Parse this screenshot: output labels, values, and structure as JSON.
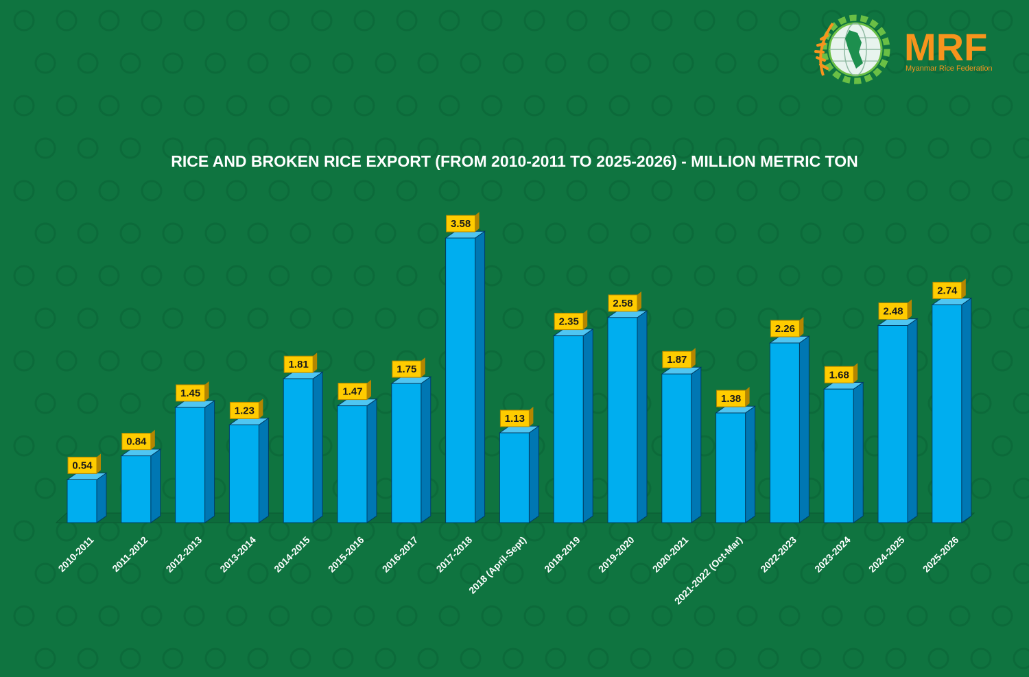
{
  "colors": {
    "background": "#0f7440",
    "pattern": "#0c6a3a",
    "bar_front": "#00aeef",
    "bar_side": "#0077b3",
    "bar_top": "#4fc6f2",
    "bar_edge": "#003d63",
    "label_fill": "#ffcc00",
    "label_edge": "#b58600",
    "floor": "#0d6b3b",
    "logo_orange": "#f7941d",
    "logo_green": "#6abf45"
  },
  "logo": {
    "acronym": "MRF",
    "name": "Myanmar Rice Federation",
    "icon": "globe-gear-rice-icon"
  },
  "chart_data": {
    "type": "bar",
    "title": "RICE AND BROKEN RICE EXPORT (FROM 2010-2011 TO 2025-2026) - MILLION METRIC TON",
    "xlabel": "",
    "ylabel": "",
    "ylim": [
      0,
      3.58
    ],
    "grid": false,
    "legend": "none",
    "categories": [
      "2010-2011",
      "2011-2012",
      "2012-2013",
      "2013-2014",
      "2014-2015",
      "2015-2016",
      "2016-2017",
      "2017-2018",
      "2018 (April-Sept)",
      "2018-2019",
      "2019-2020",
      "2020-2021",
      "2021-2022 (Oct-Mar)",
      "2022-2023",
      "2023-2024",
      "2024-2025",
      "2025-2026"
    ],
    "values": [
      0.54,
      0.84,
      1.45,
      1.23,
      1.81,
      1.47,
      1.75,
      3.58,
      1.13,
      2.35,
      2.58,
      1.87,
      1.38,
      2.26,
      1.68,
      2.48,
      2.74
    ],
    "value_labels": [
      "0.54",
      "0.84",
      "1.45",
      "1.23",
      "1.81",
      "1.47",
      "1.75",
      "3.58",
      "1.13",
      "2.35",
      "2.58",
      "1.87",
      "1.38",
      "2.26",
      "1.68",
      "2.48",
      "2.74"
    ]
  }
}
